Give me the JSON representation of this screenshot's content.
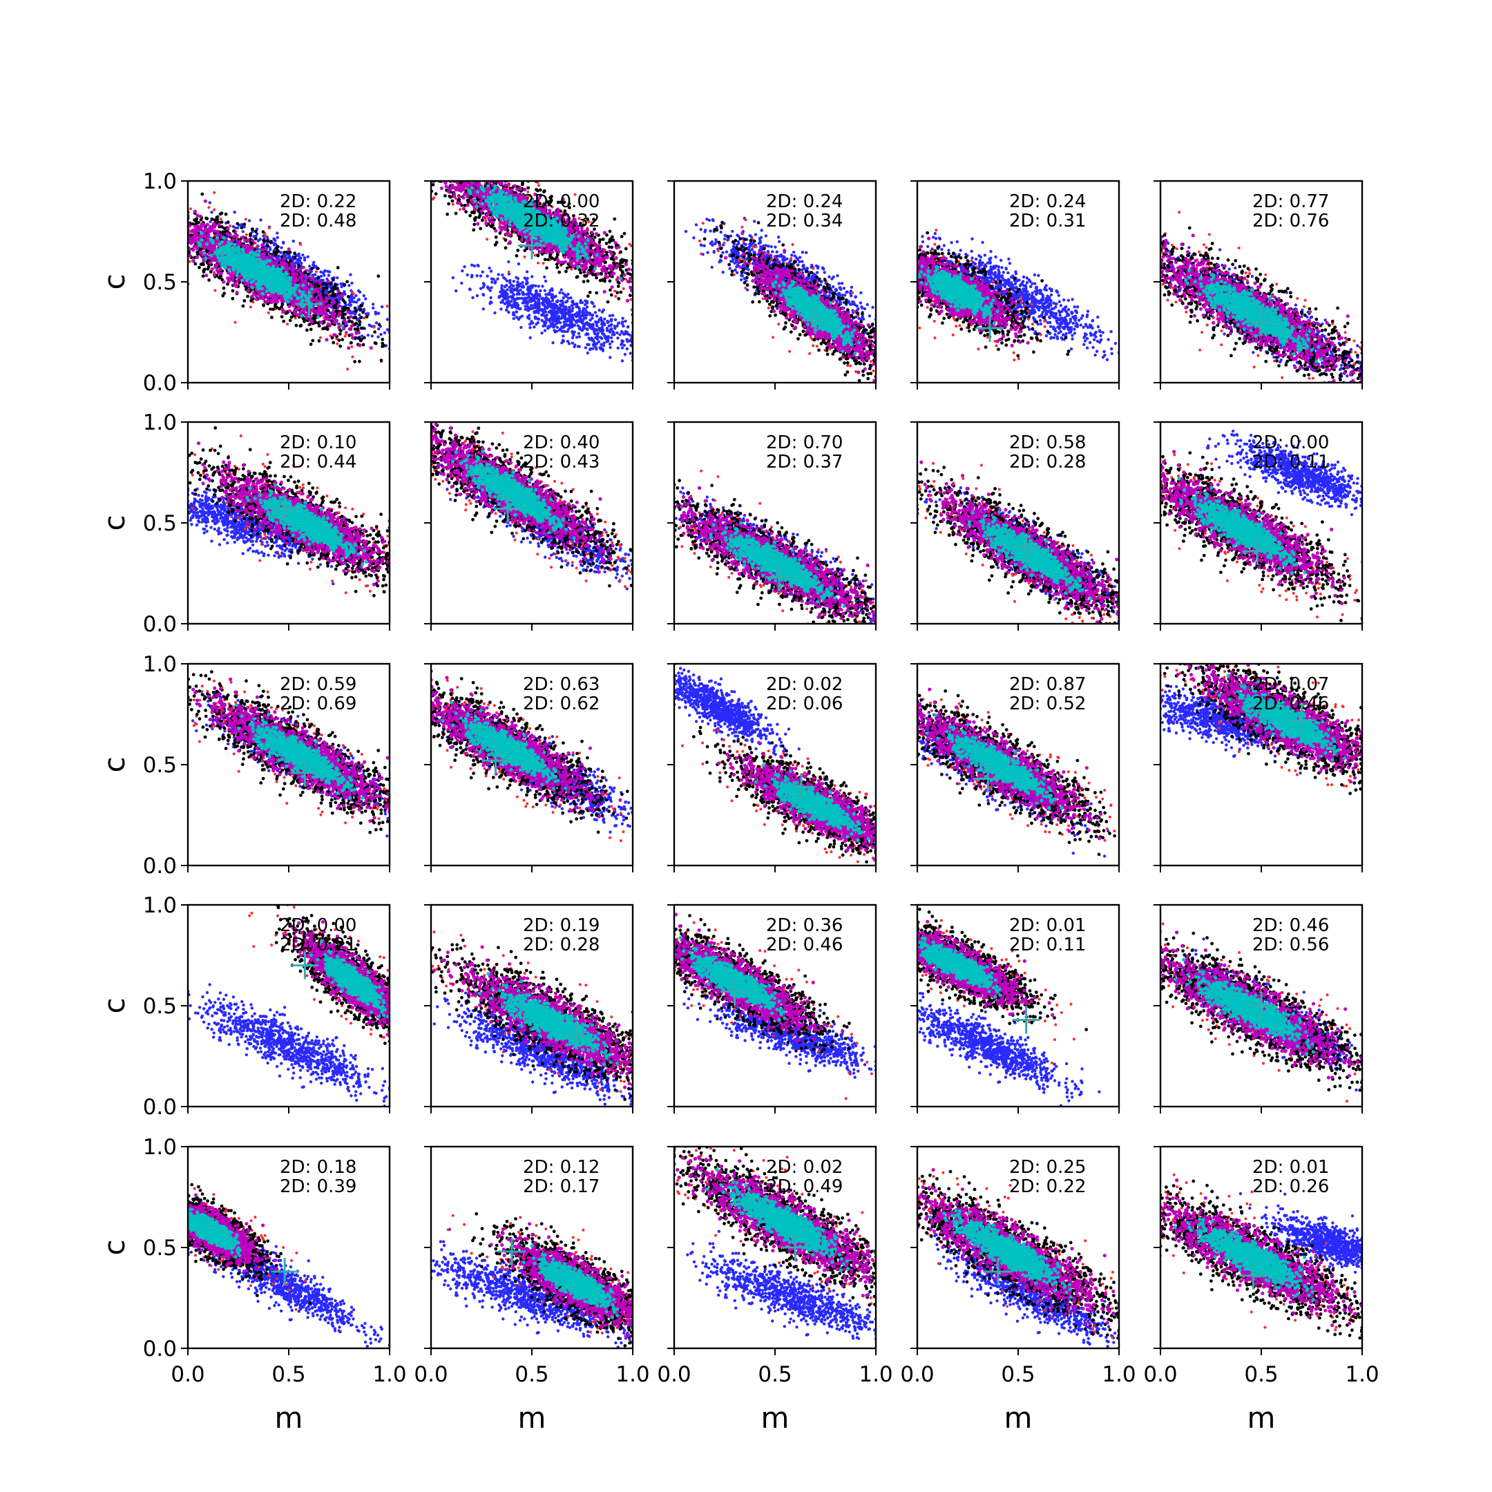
{
  "chart_data": {
    "type": "scatter",
    "layout": "5x5 grid of subplots sharing axes",
    "xlabel": "m",
    "ylabel": "c",
    "xlim": [
      0,
      1
    ],
    "ylim": [
      0,
      1
    ],
    "xticks": [
      "0.0",
      "0.5",
      "1.0"
    ],
    "yticks": [
      "0.0",
      "0.5",
      "1.0"
    ],
    "grid": false,
    "point_colors": {
      "blue": "#2a2aff",
      "red": "#ff2a2a",
      "black": "#000000",
      "magenta": "#c000c0",
      "cyan": "#00c0c0"
    },
    "marker_color": "#30b0b0",
    "panels": [
      {
        "row": 0,
        "col": 0,
        "annotations": [
          "2D: 0.22",
          "2D: 0.48"
        ],
        "marker": [
          0.6,
          0.39
        ],
        "blue": {
          "cx": 0.55,
          "cy": 0.52,
          "angle": -32,
          "rx": 0.42,
          "ry": 0.1
        },
        "main": {
          "cx": 0.35,
          "cy": 0.55,
          "angle": -30,
          "rx": 0.55,
          "ry": 0.13
        }
      },
      {
        "row": 0,
        "col": 1,
        "annotations": [
          "2D: 0.00",
          "2D: 0.32"
        ],
        "marker": [
          0.5,
          0.68
        ],
        "blue": {
          "cx": 0.62,
          "cy": 0.35,
          "angle": -22,
          "rx": 0.42,
          "ry": 0.1
        },
        "main": {
          "cx": 0.5,
          "cy": 0.8,
          "angle": -30,
          "rx": 0.58,
          "ry": 0.13
        }
      },
      {
        "row": 0,
        "col": 2,
        "annotations": [
          "2D: 0.24",
          "2D: 0.34"
        ],
        "marker": [
          0.7,
          0.31
        ],
        "blue": {
          "cx": 0.55,
          "cy": 0.53,
          "angle": -28,
          "rx": 0.42,
          "ry": 0.11
        },
        "main": {
          "cx": 0.7,
          "cy": 0.35,
          "angle": -38,
          "rx": 0.42,
          "ry": 0.11
        }
      },
      {
        "row": 0,
        "col": 3,
        "annotations": [
          "2D: 0.24",
          "2D: 0.31"
        ],
        "marker": [
          0.36,
          0.27
        ],
        "blue": {
          "cx": 0.5,
          "cy": 0.43,
          "angle": -28,
          "rx": 0.45,
          "ry": 0.1
        },
        "main": {
          "cx": 0.2,
          "cy": 0.45,
          "angle": -30,
          "rx": 0.35,
          "ry": 0.12
        }
      },
      {
        "row": 0,
        "col": 4,
        "annotations": [
          "2D: 0.77",
          "2D: 0.76"
        ],
        "marker": [
          0.5,
          0.3
        ],
        "blue": {
          "cx": 0.5,
          "cy": 0.33,
          "angle": -30,
          "rx": 0.55,
          "ry": 0.12
        },
        "main": {
          "cx": 0.45,
          "cy": 0.35,
          "angle": -30,
          "rx": 0.6,
          "ry": 0.14
        }
      },
      {
        "row": 1,
        "col": 0,
        "annotations": [
          "2D: 0.10",
          "2D: 0.44"
        ],
        "marker": [
          0.48,
          0.57
        ],
        "blue": {
          "cx": 0.28,
          "cy": 0.5,
          "angle": -18,
          "rx": 0.4,
          "ry": 0.1
        },
        "main": {
          "cx": 0.58,
          "cy": 0.5,
          "angle": -28,
          "rx": 0.52,
          "ry": 0.13
        }
      },
      {
        "row": 1,
        "col": 1,
        "annotations": [
          "2D: 0.40",
          "2D: 0.43"
        ],
        "marker": [
          0.38,
          0.57
        ],
        "blue": {
          "cx": 0.6,
          "cy": 0.48,
          "angle": -30,
          "rx": 0.45,
          "ry": 0.1
        },
        "main": {
          "cx": 0.4,
          "cy": 0.65,
          "angle": -32,
          "rx": 0.55,
          "ry": 0.13
        }
      },
      {
        "row": 1,
        "col": 2,
        "annotations": [
          "2D: 0.70",
          "2D: 0.37"
        ],
        "marker": [
          0.52,
          0.23
        ],
        "blue": {
          "cx": 0.5,
          "cy": 0.33,
          "angle": -28,
          "rx": 0.5,
          "ry": 0.11
        },
        "main": {
          "cx": 0.5,
          "cy": 0.3,
          "angle": -28,
          "rx": 0.58,
          "ry": 0.13
        }
      },
      {
        "row": 1,
        "col": 3,
        "annotations": [
          "2D: 0.58",
          "2D: 0.28"
        ],
        "marker": [
          0.54,
          0.38
        ],
        "blue": {
          "cx": 0.6,
          "cy": 0.33,
          "angle": -32,
          "rx": 0.45,
          "ry": 0.11
        },
        "main": {
          "cx": 0.55,
          "cy": 0.35,
          "angle": -32,
          "rx": 0.55,
          "ry": 0.13
        }
      },
      {
        "row": 1,
        "col": 4,
        "annotations": [
          "2D: 0.00",
          "2D: 0.11"
        ],
        "marker": [
          0.48,
          0.36
        ],
        "blue": {
          "cx": 0.7,
          "cy": 0.74,
          "angle": -22,
          "rx": 0.35,
          "ry": 0.09
        },
        "main": {
          "cx": 0.4,
          "cy": 0.47,
          "angle": -30,
          "rx": 0.55,
          "ry": 0.14
        }
      },
      {
        "row": 2,
        "col": 0,
        "annotations": [
          "2D: 0.59",
          "2D: 0.69"
        ],
        "marker": [
          0.58,
          0.46
        ],
        "blue": {
          "cx": 0.55,
          "cy": 0.55,
          "angle": -28,
          "rx": 0.45,
          "ry": 0.1
        },
        "main": {
          "cx": 0.55,
          "cy": 0.55,
          "angle": -30,
          "rx": 0.55,
          "ry": 0.13
        }
      },
      {
        "row": 2,
        "col": 1,
        "annotations": [
          "2D: 0.63",
          "2D: 0.62"
        ],
        "marker": [
          0.32,
          0.52
        ],
        "blue": {
          "cx": 0.6,
          "cy": 0.45,
          "angle": -30,
          "rx": 0.45,
          "ry": 0.1
        },
        "main": {
          "cx": 0.38,
          "cy": 0.58,
          "angle": -30,
          "rx": 0.5,
          "ry": 0.13
        }
      },
      {
        "row": 2,
        "col": 2,
        "annotations": [
          "2D: 0.02",
          "2D: 0.06"
        ],
        "marker": [
          0.63,
          0.39
        ],
        "blue": {
          "cx": 0.22,
          "cy": 0.78,
          "angle": -30,
          "rx": 0.3,
          "ry": 0.08
        },
        "main": {
          "cx": 0.7,
          "cy": 0.3,
          "angle": -28,
          "rx": 0.45,
          "ry": 0.12
        }
      },
      {
        "row": 2,
        "col": 3,
        "annotations": [
          "2D: 0.87",
          "2D: 0.52"
        ],
        "marker": [
          0.35,
          0.43
        ],
        "blue": {
          "cx": 0.35,
          "cy": 0.48,
          "angle": -30,
          "rx": 0.45,
          "ry": 0.1
        },
        "main": {
          "cx": 0.4,
          "cy": 0.5,
          "angle": -30,
          "rx": 0.55,
          "ry": 0.13
        }
      },
      {
        "row": 2,
        "col": 4,
        "annotations": [
          "2D: 0.07",
          "2D: 0.46"
        ],
        "marker": [
          0.7,
          0.72
        ],
        "blue": {
          "cx": 0.3,
          "cy": 0.72,
          "angle": -15,
          "rx": 0.35,
          "ry": 0.1
        },
        "main": {
          "cx": 0.62,
          "cy": 0.72,
          "angle": -28,
          "rx": 0.5,
          "ry": 0.14
        }
      },
      {
        "row": 3,
        "col": 0,
        "annotations": [
          "2D: 0.00",
          "2D: 0.21"
        ],
        "marker": [
          0.58,
          0.7
        ],
        "blue": {
          "cx": 0.5,
          "cy": 0.3,
          "angle": -25,
          "rx": 0.48,
          "ry": 0.1
        },
        "main": {
          "cx": 0.82,
          "cy": 0.62,
          "angle": -40,
          "rx": 0.35,
          "ry": 0.11
        }
      },
      {
        "row": 3,
        "col": 1,
        "annotations": [
          "2D: 0.19",
          "2D: 0.28"
        ],
        "marker": [
          0.72,
          0.35
        ],
        "blue": {
          "cx": 0.55,
          "cy": 0.27,
          "angle": -25,
          "rx": 0.45,
          "ry": 0.1
        },
        "main": {
          "cx": 0.6,
          "cy": 0.42,
          "angle": -28,
          "rx": 0.55,
          "ry": 0.14
        }
      },
      {
        "row": 3,
        "col": 2,
        "annotations": [
          "2D: 0.36",
          "2D: 0.46"
        ],
        "marker": [
          0.3,
          0.57
        ],
        "blue": {
          "cx": 0.6,
          "cy": 0.35,
          "angle": -20,
          "rx": 0.4,
          "ry": 0.09
        },
        "main": {
          "cx": 0.3,
          "cy": 0.62,
          "angle": -30,
          "rx": 0.48,
          "ry": 0.12
        }
      },
      {
        "row": 3,
        "col": 3,
        "annotations": [
          "2D: 0.01",
          "2D: 0.11"
        ],
        "marker": [
          0.54,
          0.43
        ],
        "blue": {
          "cx": 0.35,
          "cy": 0.3,
          "angle": -25,
          "rx": 0.4,
          "ry": 0.09
        },
        "main": {
          "cx": 0.2,
          "cy": 0.7,
          "angle": -28,
          "rx": 0.4,
          "ry": 0.11
        }
      },
      {
        "row": 3,
        "col": 4,
        "annotations": [
          "2D: 0.46",
          "2D: 0.56"
        ],
        "marker": [
          0.5,
          0.5
        ],
        "blue": {
          "cx": 0.55,
          "cy": 0.45,
          "angle": -28,
          "rx": 0.48,
          "ry": 0.1
        },
        "main": {
          "cx": 0.45,
          "cy": 0.48,
          "angle": -28,
          "rx": 0.58,
          "ry": 0.14
        }
      },
      {
        "row": 4,
        "col": 0,
        "annotations": [
          "2D: 0.18",
          "2D: 0.39"
        ],
        "marker": [
          0.48,
          0.38
        ],
        "blue": {
          "cx": 0.45,
          "cy": 0.33,
          "angle": -28,
          "rx": 0.45,
          "ry": 0.09
        },
        "main": {
          "cx": 0.12,
          "cy": 0.58,
          "angle": -32,
          "rx": 0.28,
          "ry": 0.1
        }
      },
      {
        "row": 4,
        "col": 1,
        "annotations": [
          "2D: 0.12",
          "2D: 0.17"
        ],
        "marker": [
          0.4,
          0.48
        ],
        "blue": {
          "cx": 0.45,
          "cy": 0.27,
          "angle": -20,
          "rx": 0.45,
          "ry": 0.1
        },
        "main": {
          "cx": 0.72,
          "cy": 0.32,
          "angle": -30,
          "rx": 0.4,
          "ry": 0.12
        }
      },
      {
        "row": 4,
        "col": 2,
        "annotations": [
          "2D: 0.02",
          "2D: 0.49"
        ],
        "marker": [
          0.6,
          0.5
        ],
        "blue": {
          "cx": 0.58,
          "cy": 0.26,
          "angle": -20,
          "rx": 0.45,
          "ry": 0.1
        },
        "main": {
          "cx": 0.55,
          "cy": 0.62,
          "angle": -30,
          "rx": 0.6,
          "ry": 0.14
        }
      },
      {
        "row": 4,
        "col": 3,
        "annotations": [
          "2D: 0.25",
          "2D: 0.22"
        ],
        "marker": [
          0.4,
          0.38
        ],
        "blue": {
          "cx": 0.55,
          "cy": 0.28,
          "angle": -28,
          "rx": 0.45,
          "ry": 0.1
        },
        "main": {
          "cx": 0.45,
          "cy": 0.48,
          "angle": -30,
          "rx": 0.6,
          "ry": 0.14
        }
      },
      {
        "row": 4,
        "col": 4,
        "annotations": [
          "2D: 0.01",
          "2D: 0.26"
        ],
        "marker": [
          0.46,
          0.36
        ],
        "blue": {
          "cx": 0.85,
          "cy": 0.52,
          "angle": -18,
          "rx": 0.3,
          "ry": 0.09
        },
        "main": {
          "cx": 0.45,
          "cy": 0.45,
          "angle": -28,
          "rx": 0.58,
          "ry": 0.14
        }
      }
    ]
  }
}
